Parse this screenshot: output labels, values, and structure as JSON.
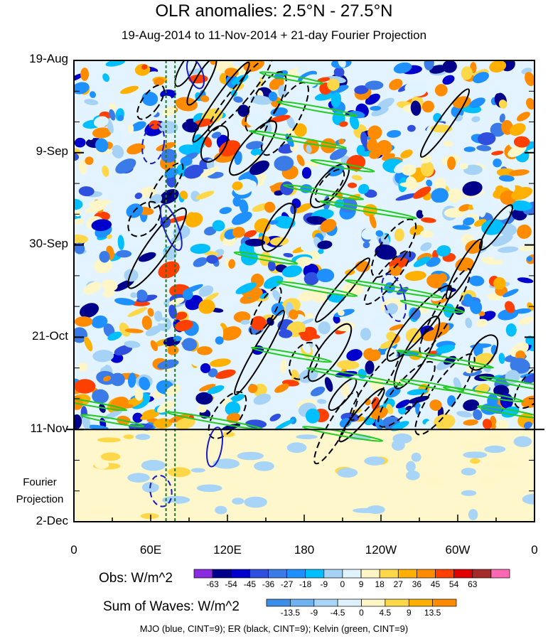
{
  "chart_data": {
    "type": "heatmap",
    "title": "OLR anomalies: 2.5°N - 27.5°N",
    "subtitle": "19-Aug-2014 to 11-Nov-2014 + 21-day Fourier Projection",
    "y_tick_labels": [
      "19-Aug",
      "9-Sep",
      "30-Sep",
      "21-Oct",
      "11-Nov",
      "2-Dec"
    ],
    "y_tick_days": [
      0,
      21,
      42,
      63,
      84,
      105
    ],
    "projection_label": [
      "Fourier",
      "Projection"
    ],
    "x_tick_labels": [
      "0",
      "60E",
      "120E",
      "180",
      "120W",
      "60W",
      "0"
    ],
    "x_tick_lons": [
      0,
      60,
      120,
      180,
      240,
      300,
      360
    ],
    "xlim": [
      0,
      360
    ],
    "ylim_days": [
      0,
      105
    ],
    "observation_end_day": 84,
    "reference_meridians_lon": [
      72,
      79
    ],
    "obs_colorbar": {
      "label": "Obs: W/m^2",
      "levels": [
        -63,
        -54,
        -45,
        -36,
        -27,
        -18,
        -9,
        0,
        9,
        18,
        27,
        36,
        45,
        54,
        63
      ],
      "colors": [
        "#8a2be2",
        "#00008b",
        "#0000cd",
        "#2f4fdf",
        "#3b7be8",
        "#1e90ff",
        "#00bfff",
        "#a6d3f5",
        "#e0f4ff",
        "#fff6c8",
        "#ffd84a",
        "#ffb000",
        "#ff8c00",
        "#ff4000",
        "#e00000",
        "#a52a2a",
        "#ff69b4"
      ]
    },
    "waves_colorbar": {
      "label": "Sum of Waves: W/m^2",
      "levels": [
        -13.5,
        -9,
        -4.5,
        0,
        4.5,
        9,
        13.5
      ],
      "colors": [
        "#3b8fe8",
        "#6fb2f0",
        "#a8d4f7",
        "#dff1fd",
        "#fff6c8",
        "#ffd84a",
        "#ffb000",
        "#ff8c00"
      ]
    },
    "wave_contours": [
      {
        "name": "MJO",
        "color": "#1a1acc",
        "cint": 9
      },
      {
        "name": "ER",
        "color": "#000000",
        "cint": 9
      },
      {
        "name": "Kelvin",
        "color": "#22cc22",
        "cint": 9
      }
    ]
  },
  "footnote": "MJO (blue, CINT=9); ER (black, CINT=9); Kelvin (green, CINT=9)"
}
